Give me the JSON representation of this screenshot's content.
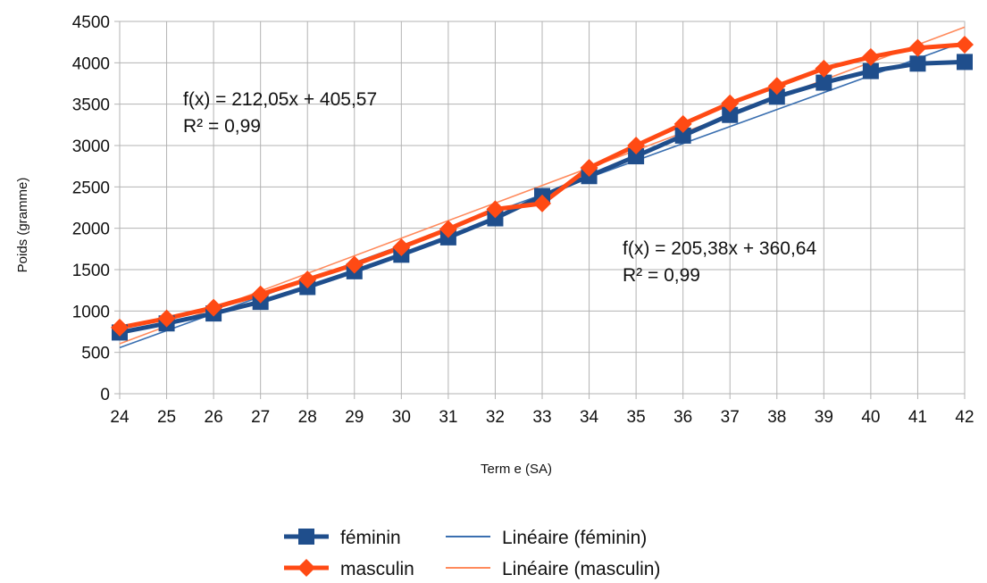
{
  "chart_data": {
    "type": "line",
    "title": "",
    "xlabel": "Term e (SA)",
    "ylabel": "Poids (gramme)",
    "x": [
      24,
      25,
      26,
      27,
      28,
      29,
      30,
      31,
      32,
      33,
      34,
      35,
      36,
      37,
      38,
      39,
      40,
      41,
      42
    ],
    "xlim": [
      24,
      42
    ],
    "ylim": [
      0,
      4500
    ],
    "yticks": [
      0,
      500,
      1000,
      1500,
      2000,
      2500,
      3000,
      3500,
      4000,
      4500
    ],
    "grid": true,
    "legend_position": "bottom",
    "series": [
      {
        "name": "féminin",
        "color": "#1f4e8c",
        "marker": "square",
        "values": [
          740,
          850,
          970,
          1110,
          1290,
          1480,
          1680,
          1890,
          2120,
          2390,
          2630,
          2870,
          3120,
          3370,
          3590,
          3760,
          3900,
          3990,
          4010
        ]
      },
      {
        "name": "masculin",
        "color": "#ff4a14",
        "marker": "diamond",
        "values": [
          800,
          910,
          1040,
          1200,
          1380,
          1560,
          1770,
          1990,
          2230,
          2300,
          2730,
          3000,
          3260,
          3510,
          3720,
          3930,
          4070,
          4180,
          4220
        ]
      }
    ],
    "trendlines": [
      {
        "name": "Linéaire (féminin)",
        "color": "#3a6fb0",
        "equation": "f(x) = 212,05x + 405,57",
        "r2": "R² = 0,99",
        "start": [
          24,
          557
        ],
        "end": [
          42,
          4257
        ]
      },
      {
        "name": "Linéaire (masculin)",
        "color": "#ff8a5c",
        "equation": "f(x) = 205,38x + 360,64",
        "r2": "R² = 0,99",
        "start": [
          24,
          604
        ],
        "end": [
          42,
          4431
        ]
      }
    ]
  }
}
